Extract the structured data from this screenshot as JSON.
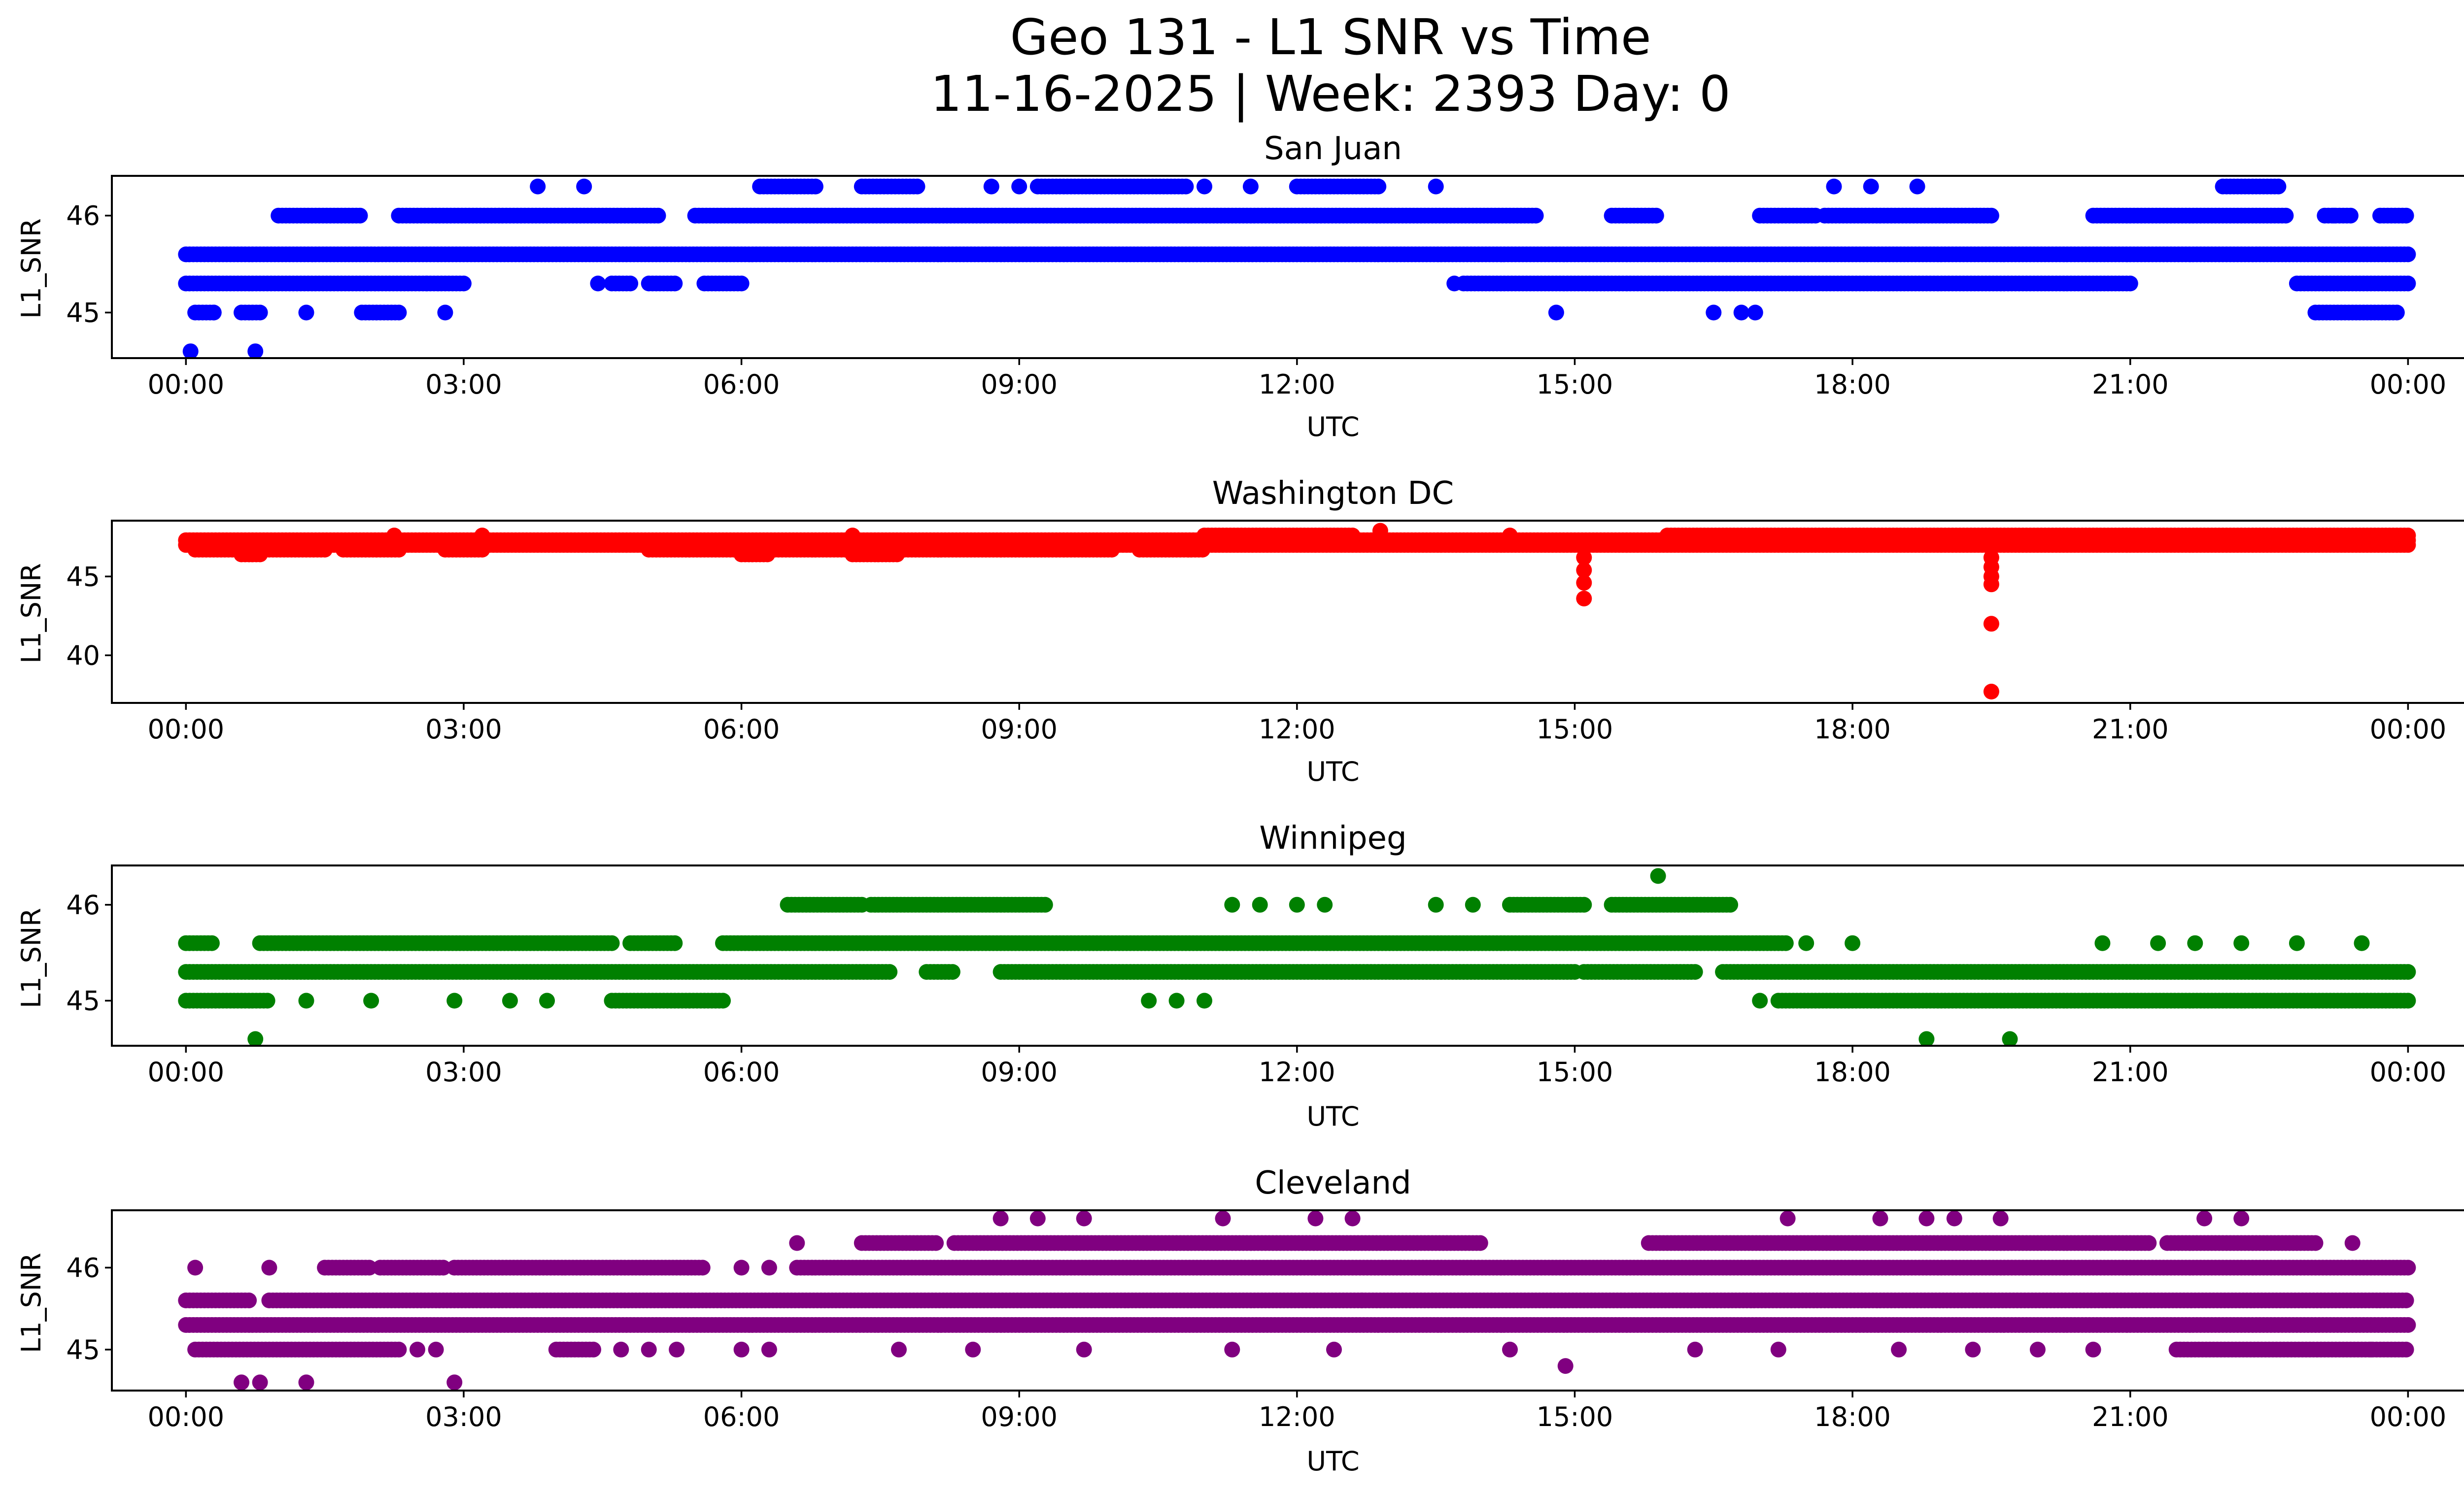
{
  "chart_data": [
    {
      "type": "scatter",
      "suptitle_line1": "Geo 131 - L1 SNR vs Time",
      "suptitle_line2": "11-16-2025 | Week: 2393 Day: 0",
      "title": "San Juan",
      "color": "#0000ff",
      "xlabel": "UTC",
      "ylabel": "L1_SNR",
      "xlim_hours": [
        -0.8,
        25.6
      ],
      "xticks": [
        0,
        3,
        6,
        9,
        12,
        15,
        18,
        21,
        24
      ],
      "xtick_labels": [
        "00:00",
        "03:00",
        "06:00",
        "09:00",
        "12:00",
        "15:00",
        "18:00",
        "21:00",
        "00:00"
      ],
      "ylim": [
        44.53,
        46.41
      ],
      "yticks": [
        45,
        46
      ],
      "ytick_labels": [
        "45",
        "46"
      ],
      "runs": [
        {
          "y": 45.6,
          "x": [
            [
              0.0,
              24.0
            ]
          ]
        },
        {
          "y": 45.3,
          "x": [
            [
              0.0,
              2.6
            ],
            [
              2.6,
              3.0
            ],
            [
              4.6,
              4.8
            ],
            [
              5.0,
              5.3
            ],
            [
              5.6,
              6.0
            ],
            [
              13.8,
              21.0
            ],
            [
              22.8,
              24.0
            ]
          ]
        },
        {
          "y": 46.0,
          "x": [
            [
              1.0,
              1.9
            ],
            [
              2.3,
              5.1
            ],
            [
              5.5,
              14.6
            ],
            [
              15.4,
              15.9
            ],
            [
              17.0,
              17.6
            ],
            [
              17.7,
              19.5
            ],
            [
              20.6,
              22.7
            ],
            [
              23.1,
              23.4
            ],
            [
              23.7,
              24.0
            ]
          ]
        },
        {
          "y": 45.0,
          "x": [
            [
              0.1,
              0.3
            ],
            [
              0.6,
              0.8
            ],
            [
              1.9,
              2.3
            ],
            [
              23.0,
              23.9
            ]
          ]
        },
        {
          "y": 46.3,
          "x": [
            [
              6.2,
              6.8
            ],
            [
              7.3,
              7.9
            ],
            [
              9.2,
              10.8
            ],
            [
              12.0,
              12.9
            ],
            [
              22.0,
              22.6
            ]
          ]
        }
      ],
      "points": [
        {
          "x": 0.05,
          "y": 44.6
        },
        {
          "x": 0.75,
          "y": 44.6
        },
        {
          "x": 0.3,
          "y": 45.0
        },
        {
          "x": 1.3,
          "y": 45.0
        },
        {
          "x": 2.8,
          "y": 45.0
        },
        {
          "x": 14.8,
          "y": 45.0
        },
        {
          "x": 16.5,
          "y": 45.0
        },
        {
          "x": 16.8,
          "y": 45.0
        },
        {
          "x": 16.95,
          "y": 45.0
        },
        {
          "x": 13.7,
          "y": 45.3
        },
        {
          "x": 4.45,
          "y": 45.3
        },
        {
          "x": 3.8,
          "y": 46.3
        },
        {
          "x": 4.3,
          "y": 46.3
        },
        {
          "x": 8.7,
          "y": 46.3
        },
        {
          "x": 9.0,
          "y": 46.3
        },
        {
          "x": 11.0,
          "y": 46.3
        },
        {
          "x": 11.5,
          "y": 46.3
        },
        {
          "x": 13.5,
          "y": 46.3
        },
        {
          "x": 17.8,
          "y": 46.3
        },
        {
          "x": 18.2,
          "y": 46.3
        },
        {
          "x": 18.7,
          "y": 46.3
        },
        {
          "x": 23.2,
          "y": 46.0
        }
      ]
    },
    {
      "type": "scatter",
      "title": "Washington DC",
      "color": "#ff0000",
      "xlabel": "UTC",
      "ylabel": "L1_SNR",
      "xlim_hours": [
        -0.8,
        25.6
      ],
      "xticks": [
        0,
        3,
        6,
        9,
        12,
        15,
        18,
        21,
        24
      ],
      "xtick_labels": [
        "00:00",
        "03:00",
        "06:00",
        "09:00",
        "12:00",
        "15:00",
        "18:00",
        "21:00",
        "00:00"
      ],
      "ylim": [
        36.98,
        48.54
      ],
      "yticks": [
        40,
        45
      ],
      "ytick_labels": [
        "40",
        "45"
      ],
      "runs": [
        {
          "y": 47.3,
          "x": [
            [
              0.0,
              24.0
            ]
          ]
        },
        {
          "y": 47.0,
          "x": [
            [
              0.0,
              24.0
            ]
          ]
        },
        {
          "y": 46.7,
          "x": [
            [
              0.1,
              1.5
            ],
            [
              1.7,
              2.3
            ],
            [
              2.8,
              3.2
            ],
            [
              5.0,
              10.0
            ],
            [
              10.3,
              11.0
            ]
          ]
        },
        {
          "y": 46.4,
          "x": [
            [
              0.6,
              0.8
            ],
            [
              6.0,
              6.3
            ],
            [
              7.2,
              7.7
            ]
          ]
        },
        {
          "y": 47.6,
          "x": [
            [
              11.0,
              12.6
            ],
            [
              16.0,
              24.0
            ]
          ]
        }
      ],
      "points": [
        {
          "x": 2.25,
          "y": 47.6
        },
        {
          "x": 3.2,
          "y": 47.6
        },
        {
          "x": 7.2,
          "y": 47.6
        },
        {
          "x": 12.9,
          "y": 47.9
        },
        {
          "x": 14.3,
          "y": 47.6
        },
        {
          "x": 15.1,
          "y": 46.2
        },
        {
          "x": 15.1,
          "y": 45.4
        },
        {
          "x": 15.1,
          "y": 44.6
        },
        {
          "x": 15.1,
          "y": 43.6
        },
        {
          "x": 19.5,
          "y": 46.2
        },
        {
          "x": 19.5,
          "y": 45.6
        },
        {
          "x": 19.5,
          "y": 45.0
        },
        {
          "x": 19.5,
          "y": 44.5
        },
        {
          "x": 19.5,
          "y": 42.0
        },
        {
          "x": 19.5,
          "y": 37.7
        }
      ]
    },
    {
      "type": "scatter",
      "title": "Winnipeg",
      "color": "#008000",
      "xlabel": "UTC",
      "ylabel": "L1_SNR",
      "xlim_hours": [
        -0.8,
        25.6
      ],
      "xticks": [
        0,
        3,
        6,
        9,
        12,
        15,
        18,
        21,
        24
      ],
      "xtick_labels": [
        "00:00",
        "03:00",
        "06:00",
        "09:00",
        "12:00",
        "15:00",
        "18:00",
        "21:00",
        "00:00"
      ],
      "ylim": [
        44.53,
        46.41
      ],
      "yticks": [
        45,
        46
      ],
      "ytick_labels": [
        "45",
        "46"
      ],
      "runs": [
        {
          "y": 45.3,
          "x": [
            [
              0.0,
              7.6
            ],
            [
              8.0,
              8.3
            ],
            [
              8.8,
              15.0
            ],
            [
              15.1,
              16.3
            ],
            [
              16.6,
              24.0
            ]
          ]
        },
        {
          "y": 45.6,
          "x": [
            [
              0.0,
              0.3
            ],
            [
              0.8,
              4.6
            ],
            [
              4.8,
              5.3
            ],
            [
              5.8,
              17.3
            ]
          ]
        },
        {
          "y": 45.0,
          "x": [
            [
              0.0,
              0.9
            ],
            [
              4.6,
              5.8
            ],
            [
              17.2,
              24.0
            ]
          ]
        },
        {
          "y": 46.0,
          "x": [
            [
              6.5,
              7.3
            ],
            [
              7.4,
              9.3
            ],
            [
              14.3,
              15.1
            ],
            [
              15.4,
              16.7
            ]
          ]
        }
      ],
      "points": [
        {
          "x": 0.75,
          "y": 44.6
        },
        {
          "x": 18.8,
          "y": 44.6
        },
        {
          "x": 19.7,
          "y": 44.6
        },
        {
          "x": 1.3,
          "y": 45.0
        },
        {
          "x": 2.0,
          "y": 45.0
        },
        {
          "x": 2.9,
          "y": 45.0
        },
        {
          "x": 3.5,
          "y": 45.0
        },
        {
          "x": 3.9,
          "y": 45.0
        },
        {
          "x": 10.4,
          "y": 45.0
        },
        {
          "x": 10.7,
          "y": 45.0
        },
        {
          "x": 11.0,
          "y": 45.0
        },
        {
          "x": 17.0,
          "y": 45.0
        },
        {
          "x": 17.5,
          "y": 45.6
        },
        {
          "x": 18.0,
          "y": 45.6
        },
        {
          "x": 20.7,
          "y": 45.6
        },
        {
          "x": 21.3,
          "y": 45.6
        },
        {
          "x": 21.7,
          "y": 45.6
        },
        {
          "x": 22.2,
          "y": 45.6
        },
        {
          "x": 22.8,
          "y": 45.6
        },
        {
          "x": 23.5,
          "y": 45.6
        },
        {
          "x": 11.3,
          "y": 46.0
        },
        {
          "x": 11.6,
          "y": 46.0
        },
        {
          "x": 12.0,
          "y": 46.0
        },
        {
          "x": 12.3,
          "y": 46.0
        },
        {
          "x": 13.5,
          "y": 46.0
        },
        {
          "x": 13.9,
          "y": 46.0
        },
        {
          "x": 15.9,
          "y": 46.3
        }
      ]
    },
    {
      "type": "scatter",
      "title": "Cleveland",
      "color": "#800080",
      "xlabel": "UTC",
      "ylabel": "L1_SNR",
      "xlim_hours": [
        -0.8,
        25.6
      ],
      "xticks": [
        0,
        3,
        6,
        9,
        12,
        15,
        18,
        21,
        24
      ],
      "xtick_labels": [
        "00:00",
        "03:00",
        "06:00",
        "09:00",
        "12:00",
        "15:00",
        "18:00",
        "21:00",
        "00:00"
      ],
      "ylim": [
        44.5,
        46.7
      ],
      "yticks": [
        45,
        46
      ],
      "ytick_labels": [
        "45",
        "46"
      ],
      "runs": [
        {
          "y": 45.3,
          "x": [
            [
              0.0,
              24.0
            ]
          ]
        },
        {
          "y": 45.6,
          "x": [
            [
              0.0,
              0.7
            ],
            [
              0.9,
              12.7
            ],
            [
              12.7,
              24.0
            ]
          ]
        },
        {
          "y": 46.0,
          "x": [
            [
              1.5,
              2.0
            ],
            [
              2.1,
              2.8
            ],
            [
              2.9,
              5.6
            ],
            [
              6.6,
              24.0
            ]
          ]
        },
        {
          "y": 45.0,
          "x": [
            [
              0.1,
              2.3
            ],
            [
              4.0,
              4.4
            ],
            [
              21.5,
              24.0
            ]
          ]
        },
        {
          "y": 46.3,
          "x": [
            [
              7.3,
              8.1
            ],
            [
              8.3,
              14.0
            ],
            [
              15.8,
              21.2
            ],
            [
              21.4,
              23.0
            ]
          ]
        }
      ],
      "points": [
        {
          "x": 0.1,
          "y": 46.0
        },
        {
          "x": 0.9,
          "y": 46.0
        },
        {
          "x": 6.0,
          "y": 46.0
        },
        {
          "x": 6.3,
          "y": 46.0
        },
        {
          "x": 0.6,
          "y": 44.6
        },
        {
          "x": 0.8,
          "y": 44.6
        },
        {
          "x": 1.3,
          "y": 44.6
        },
        {
          "x": 2.9,
          "y": 44.6
        },
        {
          "x": 2.5,
          "y": 45.0
        },
        {
          "x": 2.7,
          "y": 45.0
        },
        {
          "x": 4.7,
          "y": 45.0
        },
        {
          "x": 5.0,
          "y": 45.0
        },
        {
          "x": 5.3,
          "y": 45.0
        },
        {
          "x": 6.0,
          "y": 45.0
        },
        {
          "x": 6.3,
          "y": 45.0
        },
        {
          "x": 7.7,
          "y": 45.0
        },
        {
          "x": 8.5,
          "y": 45.0
        },
        {
          "x": 9.7,
          "y": 45.0
        },
        {
          "x": 11.3,
          "y": 45.0
        },
        {
          "x": 12.4,
          "y": 45.0
        },
        {
          "x": 14.3,
          "y": 45.0
        },
        {
          "x": 16.3,
          "y": 45.0
        },
        {
          "x": 17.2,
          "y": 45.0
        },
        {
          "x": 18.5,
          "y": 45.0
        },
        {
          "x": 19.3,
          "y": 45.0
        },
        {
          "x": 20.0,
          "y": 45.0
        },
        {
          "x": 20.6,
          "y": 45.0
        },
        {
          "x": 23.6,
          "y": 45.0
        },
        {
          "x": 14.9,
          "y": 44.8
        },
        {
          "x": 6.6,
          "y": 46.3
        },
        {
          "x": 8.8,
          "y": 46.6
        },
        {
          "x": 9.2,
          "y": 46.6
        },
        {
          "x": 9.7,
          "y": 46.6
        },
        {
          "x": 11.2,
          "y": 46.6
        },
        {
          "x": 12.2,
          "y": 46.6
        },
        {
          "x": 12.6,
          "y": 46.6
        },
        {
          "x": 17.3,
          "y": 46.6
        },
        {
          "x": 18.3,
          "y": 46.6
        },
        {
          "x": 18.8,
          "y": 46.6
        },
        {
          "x": 19.1,
          "y": 46.6
        },
        {
          "x": 19.6,
          "y": 46.6
        },
        {
          "x": 21.8,
          "y": 46.6
        },
        {
          "x": 22.2,
          "y": 46.6
        },
        {
          "x": 23.4,
          "y": 46.3
        }
      ]
    }
  ]
}
